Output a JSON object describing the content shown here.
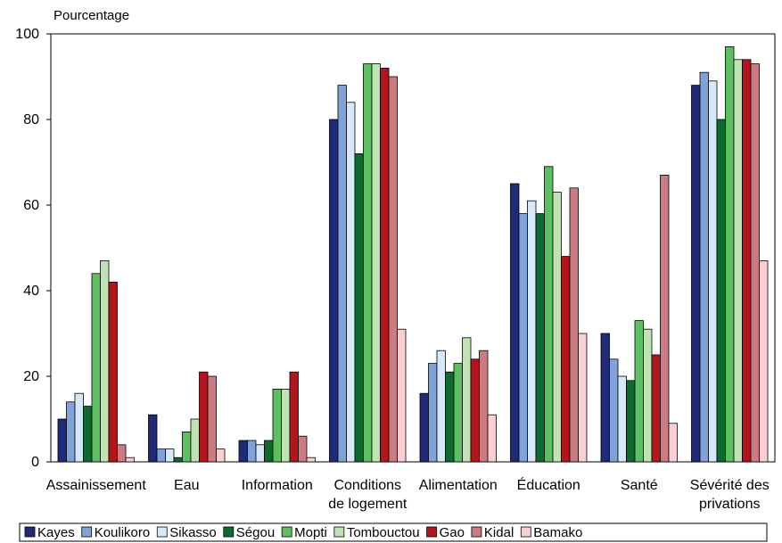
{
  "chart_data": {
    "type": "bar",
    "ylabel": "Pourcentage",
    "xlabel": "",
    "ylim": [
      0,
      100
    ],
    "yticks": [
      0,
      20,
      40,
      60,
      80,
      100
    ],
    "grid": false,
    "legend_position": "bottom",
    "categories": [
      [
        "Assainissement"
      ],
      [
        "Eau"
      ],
      [
        "Information"
      ],
      [
        "Conditions",
        "de logement"
      ],
      [
        "Alimentation"
      ],
      [
        "Éducation"
      ],
      [
        "Santé"
      ],
      [
        "Sévérité des",
        "privations"
      ]
    ],
    "series": [
      {
        "name": "Kayes",
        "color": "#1f2a78",
        "values": [
          10,
          11,
          5,
          80,
          16,
          65,
          30,
          88
        ]
      },
      {
        "name": "Koulikoro",
        "color": "#7fa2d9",
        "values": [
          14,
          3,
          5,
          88,
          23,
          58,
          24,
          91
        ]
      },
      {
        "name": "Sikasso",
        "color": "#d6e8fa",
        "values": [
          16,
          3,
          4,
          84,
          26,
          61,
          20,
          89
        ]
      },
      {
        "name": "Ségou",
        "color": "#0c6b2c",
        "values": [
          13,
          1,
          5,
          72,
          21,
          58,
          19,
          80
        ]
      },
      {
        "name": "Mopti",
        "color": "#5cc062",
        "values": [
          44,
          7,
          17,
          93,
          23,
          69,
          33,
          97
        ]
      },
      {
        "name": "Tombouctou",
        "color": "#c0e3b4",
        "values": [
          47,
          10,
          17,
          93,
          29,
          63,
          31,
          94
        ]
      },
      {
        "name": "Gao",
        "color": "#b4141c",
        "values": [
          42,
          21,
          21,
          92,
          24,
          48,
          25,
          94
        ]
      },
      {
        "name": "Kidal",
        "color": "#cc7b82",
        "values": [
          4,
          20,
          6,
          90,
          26,
          64,
          67,
          93
        ]
      },
      {
        "name": "Bamako",
        "color": "#fbcfd2",
        "values": [
          1,
          3,
          1,
          31,
          11,
          30,
          9,
          47
        ]
      }
    ]
  }
}
